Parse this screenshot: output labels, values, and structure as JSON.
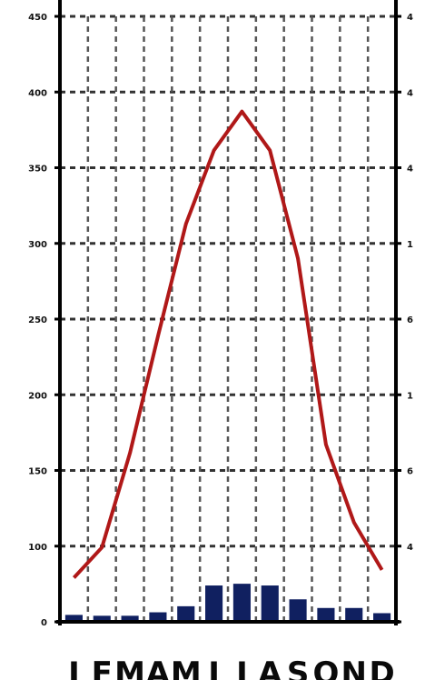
{
  "chart_data": {
    "type": "bar+line",
    "title": "",
    "categories": [
      "",
      "",
      "",
      "",
      "",
      "",
      "",
      "",
      "",
      "",
      "",
      ""
    ],
    "x_tick_labels": [
      "J",
      "F",
      "M",
      "A",
      "M",
      "J",
      "J",
      "A",
      "S",
      "O",
      "N",
      "D"
    ],
    "bars": {
      "name": "",
      "color": "#102060",
      "values": [
        8,
        7,
        7,
        11,
        18,
        42,
        44,
        42,
        26,
        16,
        16,
        10
      ]
    },
    "line": {
      "name": "",
      "color": "#b01818",
      "values": [
        51,
        86,
        195,
        330,
        460,
        545,
        590,
        545,
        420,
        205,
        115,
        60
      ]
    },
    "left_axis": {
      "min": 0,
      "max": 700,
      "step": 100,
      "tick_labels": [
        "0",
        "100",
        "150",
        "200",
        "250",
        "300",
        "350",
        "400",
        "450"
      ]
    },
    "right_axis": {
      "tick_labels": [
        "",
        "4",
        "6",
        "1",
        "6",
        "1",
        "4",
        "4",
        "4"
      ]
    },
    "grid": true
  }
}
